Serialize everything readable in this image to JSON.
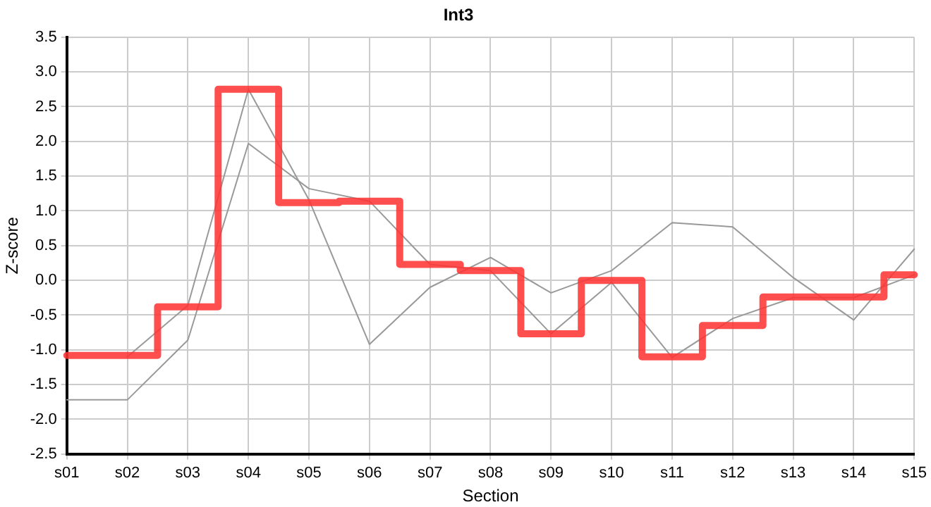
{
  "chart_data": {
    "type": "line",
    "title": "Int3",
    "xlabel": "Section",
    "ylabel": "Z-score",
    "categories": [
      "s01",
      "s02",
      "s03",
      "s04",
      "s05",
      "s06",
      "s07",
      "s08",
      "s09",
      "s10",
      "s11",
      "s12",
      "s13",
      "s14",
      "s15"
    ],
    "series": [
      {
        "color": "#999999",
        "values": [
          null,
          -1.1,
          -0.36,
          2.75,
          1.16,
          -0.92,
          -0.1,
          0.33,
          -0.18,
          0.14,
          0.83,
          0.77,
          0.04,
          -0.57,
          0.45
        ]
      },
      {
        "color": "#999999",
        "values": [
          -1.72,
          -1.72,
          -0.86,
          1.97,
          1.32,
          1.14,
          0.23,
          0.14,
          -0.77,
          -0.03,
          -1.11,
          -0.55,
          -0.25,
          -0.25,
          0.08
        ]
      },
      {
        "type": "step",
        "color": "#ff3333",
        "values": [
          -1.08,
          -1.08,
          -0.38,
          2.75,
          1.12,
          1.14,
          0.23,
          0.14,
          -0.77,
          0,
          -1.1,
          -0.65,
          -0.24,
          -0.24,
          0.08
        ]
      }
    ],
    "ylim": [
      -2.5,
      3.5
    ],
    "yticks": [
      {
        "value": -2.5,
        "label": "-2.5"
      },
      {
        "value": -2,
        "label": "-2.0"
      },
      {
        "value": -1.5,
        "label": "-1.5"
      },
      {
        "value": -1,
        "label": "-1.0"
      },
      {
        "value": -0.5,
        "label": "-0.5"
      },
      {
        "value": 0,
        "label": "0.0"
      },
      {
        "value": 0.5,
        "label": "0.5"
      },
      {
        "value": 1,
        "label": "1.0"
      },
      {
        "value": 1.5,
        "label": "1.5"
      },
      {
        "value": 2,
        "label": "2.0"
      },
      {
        "value": 2.5,
        "label": "2.5"
      },
      {
        "value": 3,
        "label": "3.0"
      },
      {
        "value": 3.5,
        "label": "3.5"
      }
    ],
    "grid": true,
    "legend": false,
    "marker": "none"
  }
}
